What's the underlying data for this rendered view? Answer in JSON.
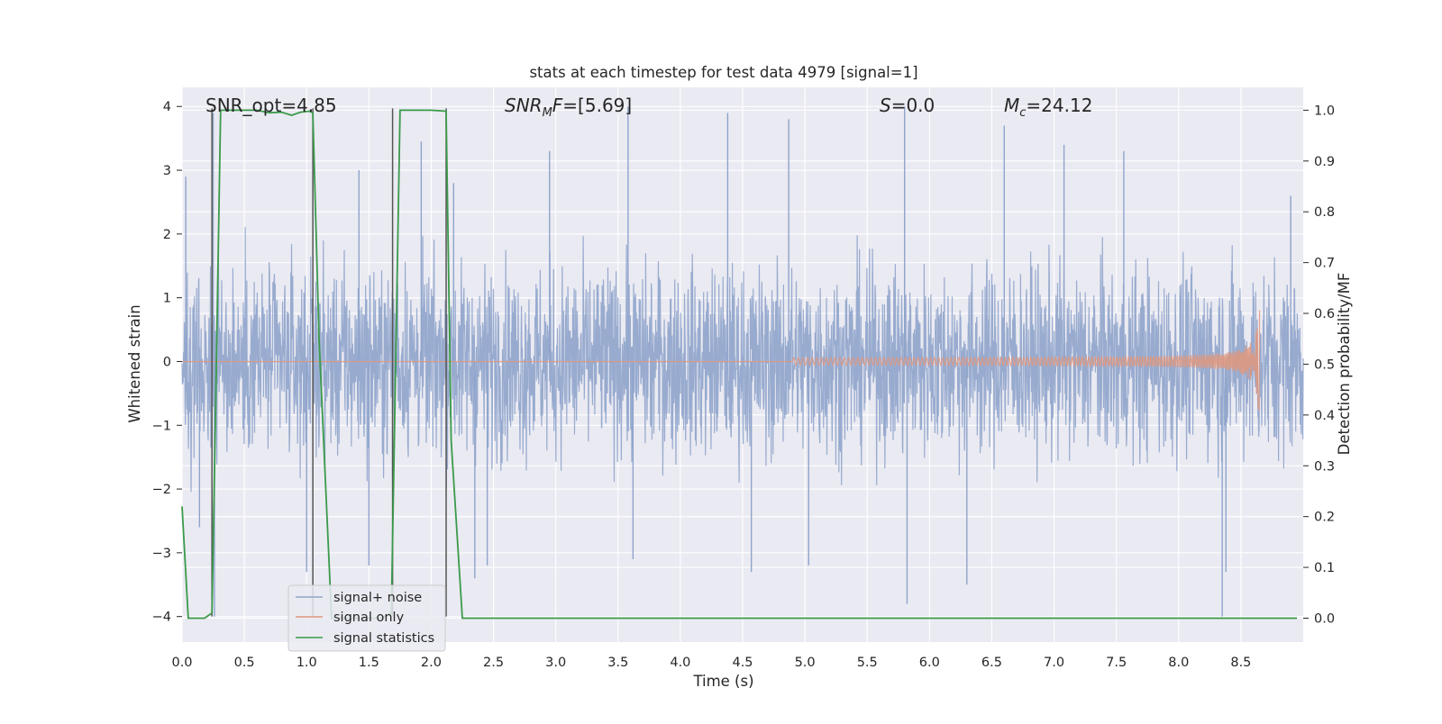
{
  "chart_data": {
    "type": "line",
    "title": "stats at each timestep for test data 4979 [signal=1]",
    "xlabel": "Time (s)",
    "ylabel": "Whitened strain",
    "y2label": "Detection probability/MF",
    "xlim": [
      0.0,
      9.0
    ],
    "ylim": [
      -4.4,
      4.3
    ],
    "y2lim": [
      -0.047,
      1.045
    ],
    "xticks": [
      "0.0",
      "0.5",
      "1.0",
      "1.5",
      "2.0",
      "2.5",
      "3.0",
      "3.5",
      "4.0",
      "4.5",
      "5.0",
      "5.5",
      "6.0",
      "6.5",
      "7.0",
      "7.5",
      "8.0",
      "8.5"
    ],
    "yticks": [
      "4",
      "3",
      "2",
      "1",
      "0",
      "−1",
      "−2",
      "−3",
      "−4"
    ],
    "y2ticks": [
      "1.0",
      "0.9",
      "0.8",
      "0.7",
      "0.6",
      "0.5",
      "0.4",
      "0.3",
      "0.2",
      "0.1",
      "0.0"
    ],
    "grid": true,
    "legend_position": "lower-left",
    "annotations": {
      "snr_opt": "SNR_opt=4.85",
      "snr_mf": "=[5.69]",
      "s_stat": "=0.0",
      "mc": "=24.12"
    },
    "series": [
      {
        "name": "signal+ noise",
        "color": "#8fa4cb",
        "description_values": "whitened noisy strain sampled over 0–8.65 s, amplitude mostly within ±2.5 with peaks near ±4",
        "envelope": {
          "x": [
            0.0,
            1.0,
            2.0,
            3.0,
            4.0,
            5.0,
            6.0,
            7.0,
            8.0,
            8.65,
            9.0
          ],
          "typical_max": [
            2.2,
            2.3,
            2.3,
            2.3,
            2.3,
            2.3,
            2.3,
            2.3,
            2.3,
            2.3,
            2.3
          ],
          "typical_min": [
            -2.2,
            -2.3,
            -2.3,
            -2.3,
            -2.3,
            -2.3,
            -2.3,
            -2.3,
            -2.3,
            -2.3,
            -2.3
          ]
        },
        "spikes": [
          [
            0.03,
            2.9
          ],
          [
            0.14,
            -2.6
          ],
          [
            0.25,
            3.9
          ],
          [
            0.26,
            -4.0
          ],
          [
            1.0,
            -3.3
          ],
          [
            1.42,
            3.0
          ],
          [
            1.5,
            -3.2
          ],
          [
            1.92,
            3.45
          ],
          [
            2.18,
            2.8
          ],
          [
            2.35,
            -3.4
          ],
          [
            2.45,
            -3.2
          ],
          [
            2.95,
            3.3
          ],
          [
            3.58,
            4.0
          ],
          [
            3.62,
            -3.1
          ],
          [
            4.38,
            3.9
          ],
          [
            4.57,
            -3.3
          ],
          [
            4.87,
            3.8
          ],
          [
            5.03,
            -3.2
          ],
          [
            5.8,
            4.0
          ],
          [
            5.82,
            -3.8
          ],
          [
            6.3,
            -3.5
          ],
          [
            6.6,
            3.7
          ],
          [
            7.08,
            3.4
          ],
          [
            7.56,
            3.3
          ],
          [
            8.35,
            -4.0
          ],
          [
            8.38,
            -3.3
          ],
          [
            8.9,
            2.6
          ]
        ]
      },
      {
        "name": "signal only",
        "color": "#e0967c",
        "description_values": "chirp waveform, near zero until ~5 s, growing oscillation reaching about +1.1 / -1.0 at merger 8.65 s",
        "chirp": {
          "t_start": 4.9,
          "t_merge": 8.65,
          "peak_amp_pos": 1.1,
          "peak_amp_neg": -1.05
        }
      },
      {
        "name": "signal statistics",
        "color": "#3a9a4a",
        "axis": "right",
        "x": [
          0.0,
          0.05,
          0.18,
          0.24,
          0.27,
          0.31,
          0.4,
          0.6,
          0.7,
          0.8,
          0.88,
          0.95,
          1.02,
          1.05,
          1.1,
          1.2,
          1.3,
          1.4,
          1.5,
          1.6,
          1.68,
          1.75,
          1.8,
          2.0,
          2.12,
          2.16,
          2.25,
          3.0,
          4.0,
          5.0,
          6.0,
          7.0,
          8.0,
          8.95
        ],
        "y": [
          0.22,
          0.0,
          0.0,
          0.01,
          0.42,
          1.0,
          1.0,
          1.0,
          0.995,
          0.996,
          0.99,
          0.996,
          0.998,
          0.995,
          0.55,
          0.0,
          0.0,
          0.0,
          0.0,
          0.0,
          0.01,
          1.0,
          1.0,
          1.0,
          0.998,
          0.35,
          0.0,
          0.0,
          0.0,
          0.0,
          0.0,
          0.0,
          0.0,
          0.0
        ]
      }
    ],
    "vertical_markers": [
      {
        "x": 0.24,
        "color": "#555555"
      },
      {
        "x": 1.05,
        "color": "#555555"
      },
      {
        "x": 1.69,
        "color": "#555555"
      },
      {
        "x": 2.12,
        "color": "#555555"
      }
    ]
  }
}
